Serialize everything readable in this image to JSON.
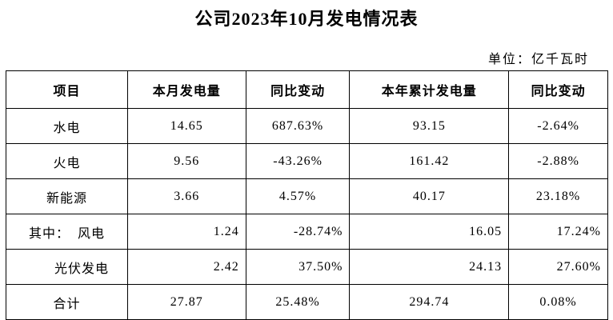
{
  "title": "公司2023年10月发电情况表",
  "unit": "单位：亿千瓦时",
  "table": {
    "header": [
      "项目",
      "本月发电量",
      "同比变动",
      "本年累计发电量",
      "同比变动"
    ],
    "rows": [
      [
        "水电",
        "14.65",
        "687.63%",
        "93.15",
        "-2.64%"
      ],
      [
        "火电",
        "9.56",
        "-43.26%",
        "161.42",
        "-2.88%"
      ],
      [
        "新能源",
        "3.66",
        "4.57%",
        "40.17",
        "23.18%"
      ],
      [
        "其中：  风电",
        "1.24",
        "-28.74%",
        "16.05",
        "17.24%"
      ],
      [
        "光伏发电",
        "2.42",
        "37.50%",
        "24.13",
        "27.60%"
      ],
      [
        "合计",
        "27.87",
        "25.48%",
        "294.74",
        "0.08%"
      ]
    ]
  }
}
